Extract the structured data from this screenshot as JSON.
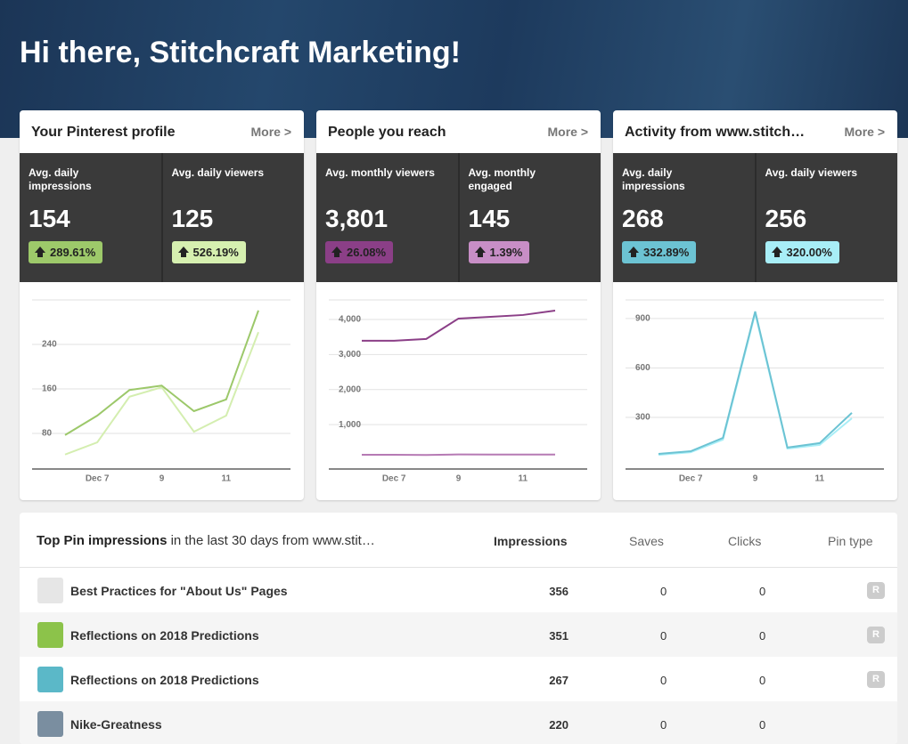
{
  "header": {
    "title": "Hi there, Stitchcraft Marketing!"
  },
  "cards": [
    {
      "title": "Your Pinterest profile",
      "more": "More >",
      "stats": [
        {
          "label": "Avg. daily\nimpressions",
          "value": "154",
          "change": "289.61%",
          "color": "#9dc96a"
        },
        {
          "label": "Avg. daily viewers",
          "value": "125",
          "change": "526.19%",
          "color": "#d6f0b0"
        }
      ],
      "chart": {
        "type": "line",
        "categories": [
          null,
          "Dec 7",
          null,
          "9",
          null,
          "11",
          null
        ],
        "ylim": [
          16,
          320
        ],
        "yticks": [
          80,
          160,
          240
        ],
        "series": [
          {
            "color": "#9cc86a",
            "values": [
              77,
              112,
              158,
              166,
              120,
              141,
              301
            ]
          },
          {
            "color": "#d4eeb0",
            "values": [
              42,
              64,
              146,
              163,
              83,
              112,
              262
            ]
          }
        ]
      }
    },
    {
      "title": "People you reach",
      "more": "More >",
      "stats": [
        {
          "label": "Avg. monthly viewers",
          "value": "3,801",
          "change": "26.08%",
          "color": "#8b3f87"
        },
        {
          "label": "Avg. monthly\nengaged",
          "value": "145",
          "change": "1.39%",
          "color": "#c88ec6"
        }
      ],
      "chart": {
        "type": "line",
        "categories": [
          null,
          "Dec 7",
          null,
          "9",
          null,
          "11",
          null
        ],
        "ylim": [
          -266,
          4557
        ],
        "yticks": [
          {
            "value": 1000,
            "label": "1,000"
          },
          {
            "value": 2000,
            "label": "2,000"
          },
          {
            "value": 3000,
            "label": "3,000"
          },
          {
            "value": 4000,
            "label": "4,000"
          }
        ],
        "series": [
          {
            "color": "#8b3f87",
            "values": [
              3392,
              3392,
              3443,
              4025,
              4076,
              4127,
              4253
            ]
          },
          {
            "color": "#b67ab4",
            "values": [
              140,
              140,
              135,
              150,
              148,
              145,
              145
            ]
          }
        ]
      }
    },
    {
      "title": "Activity from www.stitch…",
      "more": "More >",
      "stats": [
        {
          "label": "Avg. daily\nimpressions",
          "value": "268",
          "change": "332.89%",
          "color": "#6cc3d3"
        },
        {
          "label": "Avg. daily viewers",
          "value": "256",
          "change": "320.00%",
          "color": "#a8eef7"
        }
      ],
      "chart": {
        "type": "line",
        "categories": [
          null,
          "Dec 7",
          null,
          "9",
          null,
          "11",
          null
        ],
        "ylim": [
          -13,
          1013
        ],
        "yticks": [
          300,
          600,
          900
        ],
        "series": [
          {
            "color": "#6cc3d3",
            "values": [
              79,
              95,
              176,
              943,
              117,
              144,
              328
            ]
          },
          {
            "color": "#a8eef7",
            "values": [
              73,
              89,
              165,
              932,
              111,
              133,
              295
            ]
          }
        ]
      }
    }
  ],
  "table": {
    "title": "Top Pin impressions",
    "subtitle": " in the last 30 days from www.stit…",
    "columns": [
      "Impressions",
      "Saves",
      "Clicks",
      "Pin type"
    ],
    "rows": [
      [
        "Best Practices for \"About Us\" Pages",
        "356",
        "0",
        "0",
        "R"
      ],
      [
        "Reflections on 2018 Predictions",
        "351",
        "0",
        "0",
        "R"
      ],
      [
        "Reflections on 2018 Predictions",
        "267",
        "0",
        "0",
        "R"
      ],
      [
        "Nike-Greatness",
        "220",
        "0",
        "0",
        null
      ]
    ]
  }
}
